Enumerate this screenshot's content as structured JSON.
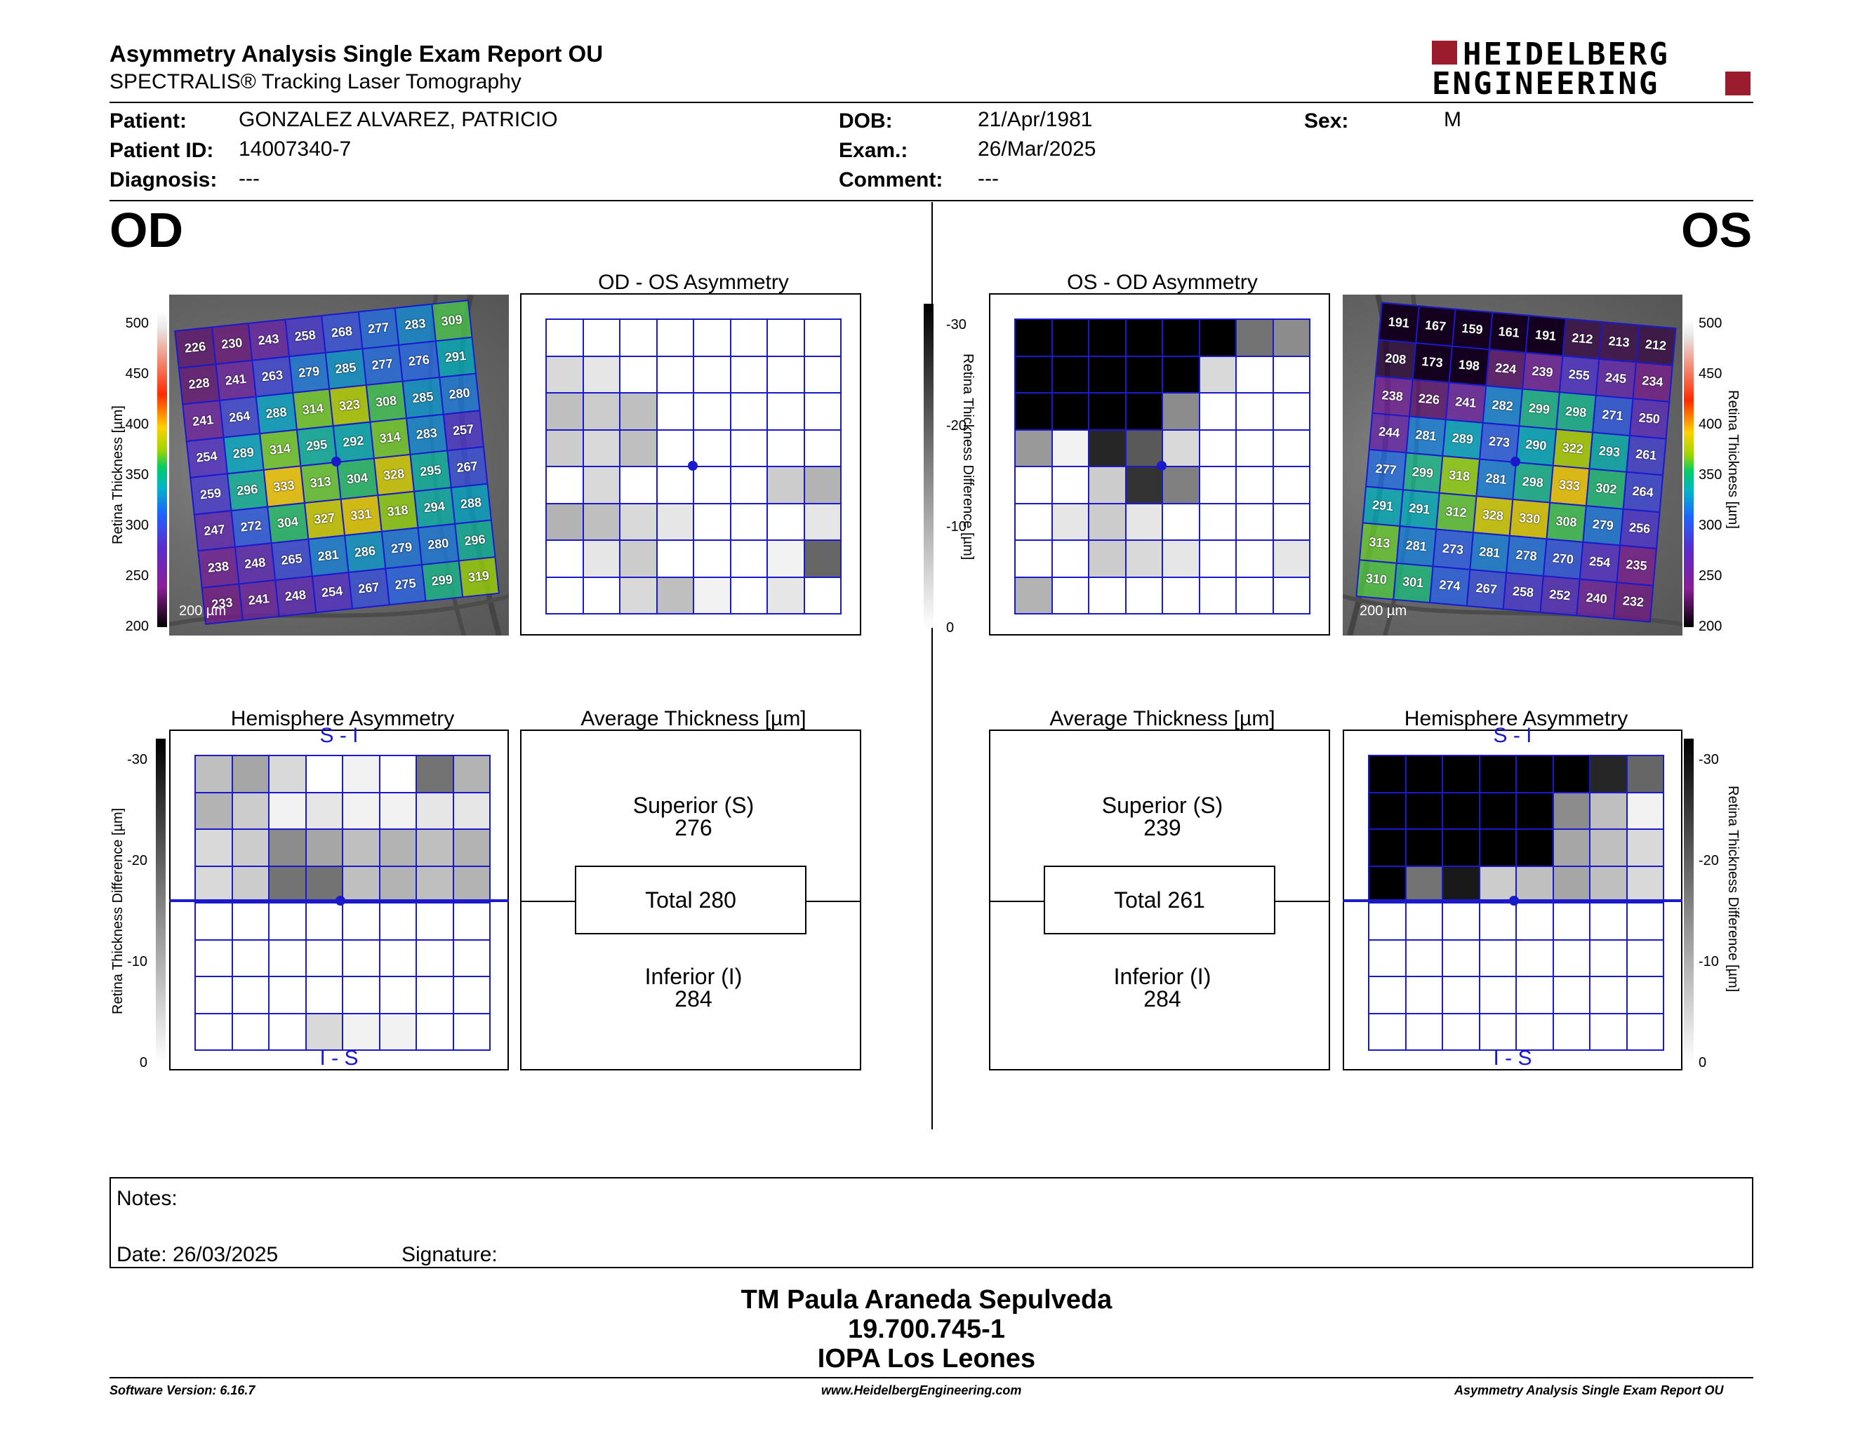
{
  "header": {
    "title": "Asymmetry Analysis Single Exam Report OU",
    "subtitle": "SPECTRALIS® Tracking Laser Tomography",
    "logo_line1": "HEIDELBERG",
    "logo_line2": "ENGINEERING"
  },
  "patient": {
    "patient_label": "Patient:",
    "patient_value": "GONZALEZ ALVAREZ, PATRICIO",
    "id_label": "Patient ID:",
    "id_value": "14007340-7",
    "diagnosis_label": "Diagnosis:",
    "diagnosis_value": "---",
    "dob_label": "DOB:",
    "dob_value": "21/Apr/1981",
    "exam_label": "Exam.:",
    "exam_value": "26/Mar/2025",
    "comment_label": "Comment:",
    "comment_value": "---",
    "sex_label": "Sex:",
    "sex_value": "M"
  },
  "od": {
    "eye_label": "OD",
    "asym_title": "OD - OS Asymmetry",
    "hemi_title": "Hemisphere Asymmetry",
    "avg_title": "Average Thickness [µm]",
    "scale_text": "200 µm",
    "hemi_top": "S - I",
    "hemi_bottom": "I - S",
    "superior_label": "Superior (S)",
    "superior_value": "276",
    "total_text": "Total 280",
    "inferior_label": "Inferior (I)",
    "inferior_value": "284",
    "thickness_axis_title": "Retina Thickness [µm]",
    "diff_axis_title": "Retina Thickness Difference [µm]",
    "thickness_grid": [
      [
        226,
        230,
        243,
        258,
        268,
        277,
        283,
        309
      ],
      [
        228,
        241,
        263,
        279,
        285,
        277,
        276,
        291
      ],
      [
        241,
        264,
        288,
        314,
        323,
        308,
        285,
        280
      ],
      [
        254,
        289,
        314,
        295,
        292,
        314,
        283,
        257
      ],
      [
        259,
        296,
        333,
        313,
        304,
        328,
        295,
        267
      ],
      [
        247,
        272,
        304,
        327,
        331,
        318,
        294,
        288
      ],
      [
        238,
        248,
        265,
        281,
        286,
        279,
        280,
        296
      ],
      [
        233,
        241,
        248,
        254,
        267,
        275,
        299,
        319
      ]
    ],
    "asym_shades": [
      [
        0,
        0,
        0,
        0,
        0,
        0,
        0,
        0
      ],
      [
        0.15,
        0.1,
        0,
        0,
        0,
        0,
        0,
        0
      ],
      [
        0.25,
        0.2,
        0.25,
        0,
        0,
        0,
        0,
        0
      ],
      [
        0.2,
        0.15,
        0.25,
        0,
        0,
        0,
        0,
        0
      ],
      [
        0,
        0.15,
        0,
        0,
        0,
        0,
        0.2,
        0.3
      ],
      [
        0.3,
        0.25,
        0.15,
        0.1,
        0,
        0,
        0,
        0.1
      ],
      [
        0,
        0.1,
        0.2,
        0,
        0,
        0,
        0.05,
        0.6
      ],
      [
        0,
        0,
        0.15,
        0.25,
        0.05,
        0,
        0.1,
        0
      ]
    ],
    "hemi_shades": [
      [
        0.25,
        0.35,
        0.15,
        0,
        0.05,
        0,
        0.55,
        0.3
      ],
      [
        0.3,
        0.2,
        0.05,
        0.1,
        0.05,
        0.05,
        0.1,
        0.1
      ],
      [
        0.15,
        0.2,
        0.45,
        0.35,
        0.25,
        0.3,
        0.25,
        0.3
      ],
      [
        0.15,
        0.2,
        0.55,
        0.55,
        0.25,
        0.3,
        0.25,
        0.3
      ],
      [
        0,
        0,
        0,
        0,
        0,
        0,
        0,
        0
      ],
      [
        0,
        0,
        0,
        0,
        0,
        0,
        0,
        0
      ],
      [
        0,
        0,
        0,
        0,
        0,
        0,
        0,
        0
      ],
      [
        0,
        0,
        0,
        0.15,
        0.05,
        0.05,
        0,
        0
      ]
    ]
  },
  "os": {
    "eye_label": "OS",
    "asym_title": "OS - OD Asymmetry",
    "hemi_title": "Hemisphere Asymmetry",
    "avg_title": "Average Thickness [µm]",
    "scale_text": "200 µm",
    "hemi_top": "S - I",
    "hemi_bottom": "I - S",
    "superior_label": "Superior (S)",
    "superior_value": "239",
    "total_text": "Total 261",
    "inferior_label": "Inferior (I)",
    "inferior_value": "284",
    "thickness_axis_title": "Retina Thickness [µm]",
    "diff_axis_title": "Retina Thickness Difference [µm]",
    "thickness_grid": [
      [
        191,
        167,
        159,
        161,
        191,
        212,
        213,
        212
      ],
      [
        208,
        173,
        198,
        224,
        239,
        255,
        245,
        234
      ],
      [
        238,
        226,
        241,
        282,
        299,
        298,
        271,
        250
      ],
      [
        244,
        281,
        289,
        273,
        290,
        322,
        293,
        261
      ],
      [
        277,
        299,
        318,
        281,
        298,
        333,
        302,
        264
      ],
      [
        291,
        291,
        312,
        328,
        330,
        308,
        279,
        256
      ],
      [
        313,
        281,
        273,
        281,
        278,
        270,
        254,
        235
      ],
      [
        310,
        301,
        274,
        267,
        258,
        252,
        240,
        232
      ]
    ],
    "asym_shades": [
      [
        1,
        1,
        1,
        1,
        1,
        1,
        0.55,
        0.45
      ],
      [
        1,
        1,
        1,
        1,
        1,
        0.15,
        0,
        0
      ],
      [
        1,
        1,
        1,
        1,
        0.45,
        0,
        0,
        0
      ],
      [
        0.4,
        0.05,
        0.85,
        0.65,
        0.15,
        0,
        0,
        0
      ],
      [
        0,
        0,
        0.2,
        0.8,
        0.5,
        0,
        0,
        0
      ],
      [
        0,
        0.1,
        0.2,
        0.1,
        0,
        0,
        0,
        0
      ],
      [
        0,
        0,
        0.2,
        0.15,
        0.1,
        0,
        0,
        0.1
      ],
      [
        0.3,
        0,
        0,
        0,
        0,
        0,
        0,
        0
      ]
    ],
    "hemi_shades": [
      [
        1,
        1,
        1,
        1,
        1,
        1,
        0.85,
        0.6
      ],
      [
        1,
        1,
        1,
        1,
        1,
        0.45,
        0.25,
        0.05
      ],
      [
        1,
        1,
        1,
        1,
        1,
        0.35,
        0.25,
        0.15
      ],
      [
        1,
        0.55,
        0.9,
        0.2,
        0.25,
        0.35,
        0.25,
        0.15
      ],
      [
        0,
        0,
        0,
        0,
        0,
        0,
        0,
        0
      ],
      [
        0,
        0,
        0,
        0,
        0,
        0,
        0,
        0
      ],
      [
        0,
        0,
        0,
        0,
        0,
        0,
        0,
        0
      ],
      [
        0,
        0,
        0,
        0,
        0,
        0,
        0,
        0
      ]
    ]
  },
  "scales": {
    "thickness_ticks": [
      "500",
      "450",
      "400",
      "350",
      "300",
      "250",
      "200"
    ],
    "diff_ticks": [
      "-30",
      "-20",
      "-10",
      "0"
    ]
  },
  "notes": {
    "notes_label": "Notes:",
    "date_label": "Date: 26/03/2025",
    "signature_label": "Signature:"
  },
  "signature_block": {
    "name": "TM Paula Araneda Sepulveda",
    "rut": "19.700.745-1",
    "clinic": "IOPA Los Leones"
  },
  "footer": {
    "version": "Software Version: 6.16.7",
    "url": "www.HeidelbergEngineering.com",
    "report": "Asymmetry Analysis Single Exam Report OU"
  },
  "colors": {
    "grid_line": "#1a1acc",
    "logo_red": "#9b1c2c"
  }
}
